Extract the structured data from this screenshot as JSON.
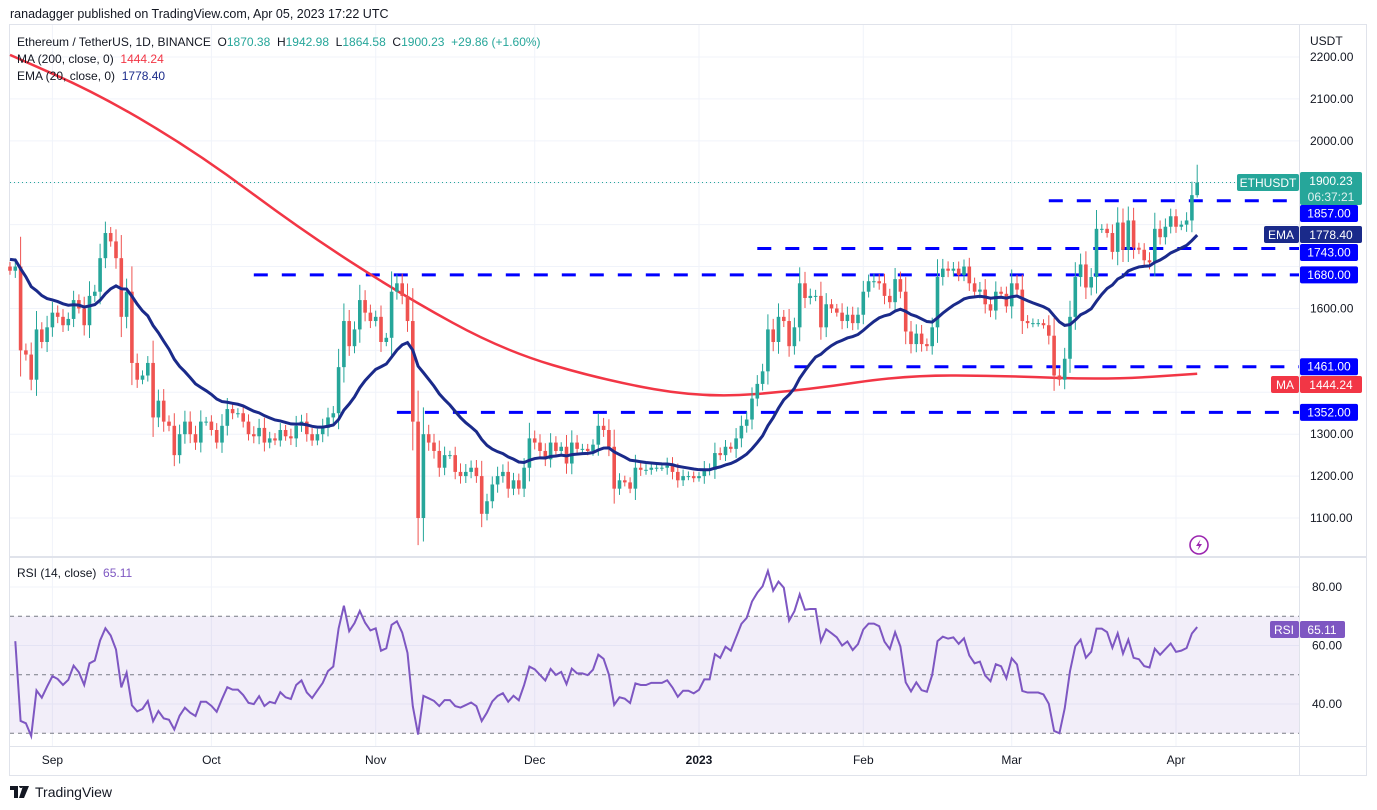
{
  "header": {
    "publisher_line": "ranadagger published on TradingView.com, Apr 05, 2023 17:22 UTC",
    "symbol_desc": "Ethereum / TetherUS, 1D, BINANCE",
    "ohlc": {
      "o_label": "O",
      "o": "1870.38",
      "h_label": "H",
      "h": "1942.98",
      "l_label": "L",
      "l": "1864.58",
      "c_label": "C",
      "c": "1900.23",
      "change": "+29.86 (+1.60%)"
    },
    "ma_label": "MA (200, close, 0)",
    "ma_value": "1444.24",
    "ema_label": "EMA (20, close, 0)",
    "ema_value": "1778.40",
    "rsi_label": "RSI (14, close)",
    "rsi_value": "65.11"
  },
  "axis": {
    "currency": "USDT",
    "price_ticks": [
      "2200.00",
      "2100.00",
      "2000.00",
      "1600.00",
      "1300.00",
      "1200.00",
      "1100.00"
    ],
    "rsi_ticks": [
      "80.00",
      "60.00",
      "40.00"
    ],
    "time_labels": [
      {
        "label": "Sep",
        "date": "2022-09-01"
      },
      {
        "label": "Oct",
        "date": "2022-10-01"
      },
      {
        "label": "Nov",
        "date": "2022-11-01"
      },
      {
        "label": "Dec",
        "date": "2022-12-01"
      },
      {
        "label": "2023",
        "date": "2023-01-01",
        "bold": true
      },
      {
        "label": "Feb",
        "date": "2023-02-01"
      },
      {
        "label": "Mar",
        "date": "2023-03-01"
      },
      {
        "label": "Apr",
        "date": "2023-04-01"
      }
    ]
  },
  "badges": {
    "symbol": "ETHUSDT",
    "last_price": "1900.23",
    "countdown": "06:37:21",
    "ema_tag": "EMA",
    "ema_price": "1778.40",
    "ma_tag": "MA",
    "ma_price": "1444.24",
    "rsi_tag": "RSI",
    "rsi_price": "65.11"
  },
  "levels": [
    {
      "value": 1857,
      "label": "1857.00",
      "start": "2023-03-08"
    },
    {
      "value": 1743,
      "label": "1743.00",
      "start": "2023-01-12"
    },
    {
      "value": 1680,
      "label": "1680.00",
      "start": "2022-10-09"
    },
    {
      "value": 1461,
      "label": "1461.00",
      "start": "2023-01-19"
    },
    {
      "value": 1352,
      "label": "1352.00",
      "start": "2022-11-05"
    }
  ],
  "colors": {
    "up": "#26a69a",
    "down": "#ef5350",
    "ma": "#f23645",
    "ema": "#1a2a8a",
    "level": "#0000ff",
    "rsi": "#7e57c2",
    "grid": "#f0f3fa"
  },
  "brand": "TradingView",
  "chart_data": {
    "type": "candlestick",
    "start_date": "2022-08-24",
    "interval": "1D",
    "ylim": [
      1020,
      2250
    ],
    "rsi_ylim": [
      23,
      93
    ],
    "rsi_bands": [
      30,
      50,
      70
    ],
    "last_candle": {
      "open": 1870.38,
      "high": 1942.98,
      "low": 1864.58,
      "close": 1900.23
    },
    "closes": [
      1690,
      1700,
      1500,
      1490,
      1430,
      1550,
      1520,
      1555,
      1590,
      1580,
      1560,
      1575,
      1620,
      1600,
      1560,
      1630,
      1640,
      1720,
      1780,
      1760,
      1720,
      1580,
      1640,
      1470,
      1430,
      1440,
      1470,
      1340,
      1380,
      1330,
      1320,
      1250,
      1300,
      1330,
      1300,
      1280,
      1330,
      1330,
      1310,
      1280,
      1320,
      1360,
      1350,
      1350,
      1330,
      1300,
      1295,
      1315,
      1280,
      1290,
      1285,
      1310,
      1295,
      1290,
      1320,
      1330,
      1300,
      1285,
      1300,
      1315,
      1340,
      1350,
      1460,
      1570,
      1510,
      1550,
      1620,
      1590,
      1570,
      1580,
      1520,
      1530,
      1640,
      1660,
      1630,
      1570,
      1330,
      1100,
      1300,
      1280,
      1260,
      1220,
      1250,
      1250,
      1210,
      1200,
      1210,
      1220,
      1200,
      1110,
      1140,
      1180,
      1200,
      1210,
      1170,
      1190,
      1170,
      1220,
      1290,
      1280,
      1260,
      1240,
      1280,
      1260,
      1270,
      1230,
      1280,
      1265,
      1265,
      1260,
      1275,
      1320,
      1310,
      1270,
      1170,
      1190,
      1185,
      1170,
      1220,
      1215,
      1215,
      1220,
      1220,
      1220,
      1225,
      1210,
      1190,
      1200,
      1200,
      1195,
      1200,
      1215,
      1215,
      1255,
      1250,
      1270,
      1265,
      1290,
      1320,
      1335,
      1385,
      1420,
      1450,
      1550,
      1520,
      1580,
      1570,
      1510,
      1555,
      1660,
      1625,
      1630,
      1630,
      1555,
      1610,
      1600,
      1590,
      1570,
      1585,
      1565,
      1585,
      1640,
      1665,
      1665,
      1660,
      1630,
      1615,
      1670,
      1640,
      1545,
      1515,
      1540,
      1515,
      1510,
      1555,
      1675,
      1695,
      1690,
      1695,
      1680,
      1700,
      1660,
      1640,
      1645,
      1610,
      1595,
      1640,
      1635,
      1605,
      1660,
      1645,
      1570,
      1565,
      1565,
      1565,
      1560,
      1535,
      1440,
      1430,
      1480,
      1580,
      1675,
      1705,
      1650,
      1675,
      1790,
      1790,
      1780,
      1735,
      1805,
      1740,
      1810,
      1745,
      1740,
      1715,
      1710,
      1790,
      1770,
      1795,
      1820,
      1795,
      1800,
      1810,
      1870.38,
      1900.23
    ],
    "ma200": [
      {
        "date": "2022-08-24",
        "value": 2205
      },
      {
        "date": "2022-09-10",
        "value": 2110
      },
      {
        "date": "2022-09-29",
        "value": 1966
      },
      {
        "date": "2022-10-18",
        "value": 1787
      },
      {
        "date": "2022-11-06",
        "value": 1632
      },
      {
        "date": "2022-11-25",
        "value": 1500
      },
      {
        "date": "2022-12-14",
        "value": 1429
      },
      {
        "date": "2023-01-02",
        "value": 1386
      },
      {
        "date": "2023-01-21",
        "value": 1405
      },
      {
        "date": "2023-02-09",
        "value": 1441
      },
      {
        "date": "2023-02-28",
        "value": 1439
      },
      {
        "date": "2023-03-19",
        "value": 1430
      },
      {
        "date": "2023-04-05",
        "value": 1444.24
      }
    ],
    "ema20_last": 1778.4,
    "rsi_last": 65.11
  }
}
